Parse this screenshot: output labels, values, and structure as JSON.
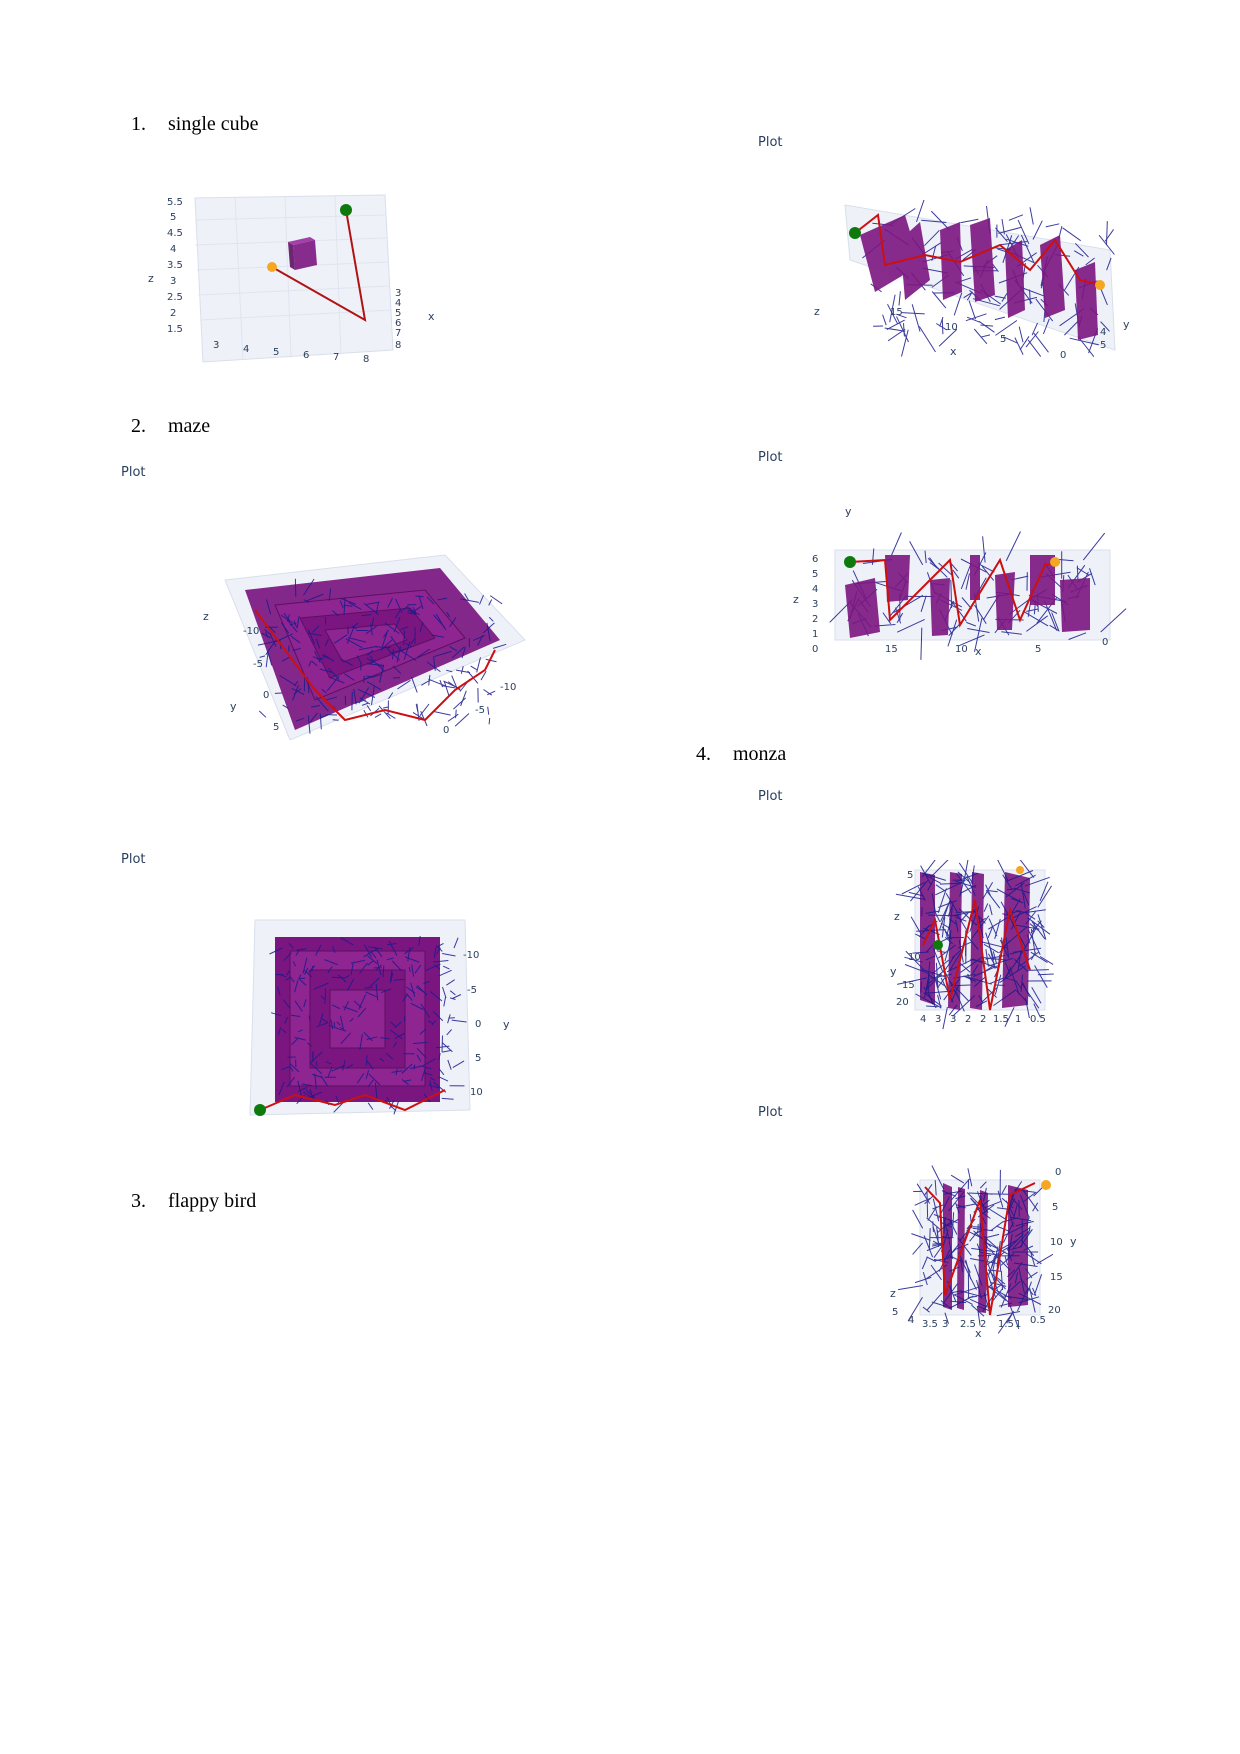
{
  "sections": [
    {
      "number": "1.",
      "title": "single cube"
    },
    {
      "number": "2.",
      "title": "maze"
    },
    {
      "number": "3.",
      "title": "flappy bird"
    },
    {
      "number": "4.",
      "title": "monza"
    }
  ],
  "plot_label": "Plot",
  "colors": {
    "obstacle": "#7b1680",
    "path": "#cc1010",
    "tree": "#1a1a8c",
    "start": "#0e7a0e",
    "goal": "#f5a623",
    "grid": "#e6ebf4",
    "text": "#2a3f5f"
  },
  "chart_data": [
    {
      "type": "3d-scene",
      "section": "single cube",
      "xlabel": "x",
      "ylabel": "",
      "zlabel": "z",
      "x_ticks": [
        "3",
        "4",
        "5",
        "6",
        "7",
        "8"
      ],
      "y_ticks": [
        "3",
        "4",
        "5",
        "6",
        "7",
        "8"
      ],
      "z_ticks": [
        "5.5",
        "5",
        "4.5",
        "4",
        "3.5",
        "3",
        "2.5",
        "2",
        "1.5"
      ]
    },
    {
      "type": "3d-scene",
      "section": "maze",
      "title": "Plot",
      "xlabel": "",
      "ylabel": "y",
      "zlabel": "z",
      "x_ticks": [
        "-10",
        "-5",
        "0"
      ],
      "y_ticks": [
        "-10",
        "-5",
        "0",
        "5"
      ]
    },
    {
      "type": "3d-scene",
      "section": "maze",
      "title": "Plot",
      "xlabel": "",
      "ylabel": "y",
      "zlabel": "",
      "y_ticks": [
        "-10",
        "-5",
        "0",
        "5",
        "10"
      ]
    },
    {
      "type": "3d-scene",
      "section": "flappy bird",
      "title": "Plot",
      "xlabel": "x",
      "ylabel": "y",
      "zlabel": "z",
      "x_ticks": [
        "15",
        "10",
        "5",
        "0"
      ],
      "y_ticks": [
        "4",
        "5"
      ]
    },
    {
      "type": "3d-scene",
      "section": "flappy bird",
      "title": "Plot",
      "xlabel": "x",
      "ylabel": "y",
      "zlabel": "z",
      "x_ticks": [
        "15",
        "10",
        "5",
        "0"
      ],
      "z_ticks": [
        "6",
        "5",
        "4",
        "3",
        "2",
        "1",
        "0"
      ]
    },
    {
      "type": "3d-scene",
      "section": "monza",
      "title": "Plot",
      "xlabel": "",
      "ylabel": "y",
      "zlabel": "z",
      "y_ticks": [
        "5",
        "10",
        "15",
        "20"
      ],
      "x_ticks": [
        "4",
        "3",
        "3",
        "2",
        "2",
        "1.5",
        "1",
        "0.5"
      ]
    },
    {
      "type": "3d-scene",
      "section": "monza",
      "title": "Plot",
      "xlabel": "x",
      "ylabel": "y",
      "zlabel": "z",
      "x_ticks": [
        "5",
        "4",
        "3.5",
        "3",
        "2.5",
        "2",
        "1.5",
        "1",
        "0.5"
      ],
      "y_ticks": [
        "0",
        "5",
        "10",
        "15",
        "20"
      ]
    }
  ]
}
